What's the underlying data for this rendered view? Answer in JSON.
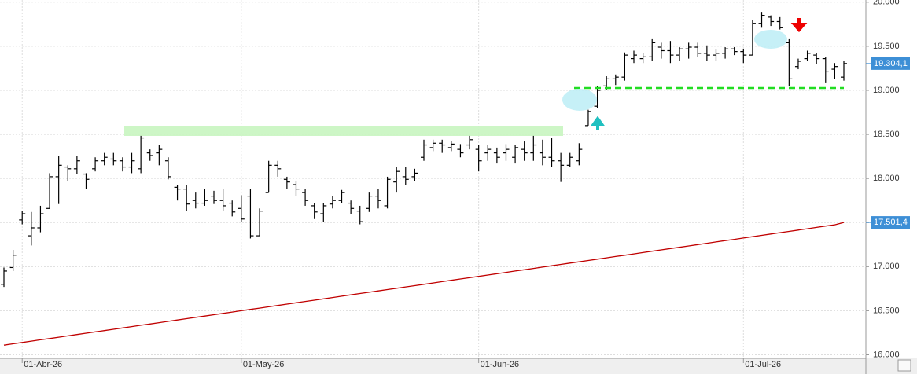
{
  "chart_data": {
    "type": "ohlc",
    "categories": [
      null,
      null,
      "01-Abr-26",
      null,
      null,
      null,
      null,
      null,
      null,
      null,
      null,
      null,
      null,
      null,
      null,
      null,
      null,
      null,
      null,
      null,
      null,
      null,
      null,
      null,
      null,
      null,
      "01-May-26",
      null,
      null,
      null,
      null,
      null,
      null,
      null,
      null,
      null,
      null,
      null,
      null,
      null,
      null,
      null,
      null,
      null,
      null,
      null,
      null,
      null,
      null,
      null,
      null,
      null,
      "01-Jun-26",
      null,
      null,
      null,
      null,
      null,
      null,
      null,
      null,
      null,
      null,
      null,
      null,
      null,
      null,
      null,
      null,
      null,
      null,
      null,
      null,
      null,
      null,
      null,
      null,
      null,
      null,
      null,
      null,
      "01-Jul-26",
      null,
      null,
      null,
      null,
      null,
      null,
      null,
      null,
      null,
      null,
      null
    ],
    "open": [
      16800,
      16990,
      17530,
      17350,
      17440,
      17660,
      18020,
      18130,
      18110,
      18050,
      18110,
      18200,
      18220,
      18200,
      18130,
      18110,
      18290,
      18290,
      18200,
      17900,
      17880,
      17750,
      17720,
      17800,
      17750,
      17720,
      17660,
      17800,
      17350,
      17840,
      18150,
      17990,
      17930,
      17840,
      17690,
      17600,
      17710,
      17750,
      17720,
      17630,
      17660,
      17800,
      17690,
      17960,
      18020,
      18020,
      18240,
      18350,
      18400,
      18350,
      18330,
      18380,
      18330,
      18290,
      18290,
      18290,
      18240,
      18330,
      18290,
      18290,
      18240,
      18200,
      18150,
      18200,
      18600,
      18820,
      19050,
      19130,
      19150,
      19360,
      19360,
      19380,
      19490,
      19450,
      19400,
      19470,
      19490,
      19420,
      19400,
      19420,
      19470,
      19440,
      19400,
      19760,
      19830,
      19780,
      19540,
      19270,
      19360,
      19400,
      19360,
      19240,
      19150
    ],
    "high": [
      16990,
      17190,
      17630,
      17620,
      17690,
      18060,
      18260,
      18150,
      18260,
      18060,
      18240,
      18290,
      18290,
      18240,
      18290,
      18490,
      18330,
      18380,
      18240,
      17930,
      17930,
      17840,
      17880,
      17860,
      17880,
      17750,
      17810,
      17880,
      17660,
      18200,
      18200,
      18020,
      17970,
      17880,
      17720,
      17720,
      17800,
      17870,
      17750,
      17690,
      17840,
      17880,
      18020,
      18130,
      18130,
      18110,
      18440,
      18440,
      18440,
      18420,
      18390,
      18490,
      18380,
      18380,
      18350,
      18390,
      18380,
      18420,
      18490,
      18440,
      18460,
      18290,
      18290,
      18400,
      18780,
      19050,
      19160,
      19180,
      19430,
      19450,
      19420,
      19580,
      19540,
      19560,
      19490,
      19540,
      19540,
      19510,
      19470,
      19490,
      19490,
      19470,
      19800,
      19890,
      19850,
      19830,
      19580,
      19360,
      19450,
      19420,
      19380,
      19310,
      19330
    ],
    "low": [
      16770,
      16950,
      17480,
      17240,
      17390,
      17660,
      17710,
      17970,
      18050,
      17880,
      18080,
      18150,
      18150,
      18080,
      18060,
      18060,
      18200,
      18150,
      17990,
      17750,
      17630,
      17660,
      17690,
      17710,
      17630,
      17570,
      17510,
      17320,
      17350,
      17840,
      18020,
      17880,
      17800,
      17690,
      17540,
      17510,
      17660,
      17720,
      17600,
      17480,
      17620,
      17660,
      17660,
      17840,
      17930,
      17970,
      18200,
      18310,
      18290,
      18310,
      18240,
      18330,
      18080,
      18200,
      18170,
      18200,
      18170,
      18200,
      18200,
      18150,
      18130,
      17960,
      18130,
      18150,
      18600,
      18800,
      19000,
      19060,
      19110,
      19310,
      19310,
      19330,
      19360,
      19310,
      19330,
      19360,
      19380,
      19330,
      19330,
      19360,
      19400,
      19310,
      19400,
      19710,
      19730,
      19690,
      19050,
      19240,
      19330,
      19300,
      19090,
      19130,
      19110
    ],
    "close": [
      16950,
      17130,
      17600,
      17440,
      17600,
      18020,
      18150,
      18110,
      18200,
      17990,
      18200,
      18240,
      18200,
      18130,
      18200,
      18460,
      18260,
      18330,
      18020,
      17880,
      17710,
      17720,
      17750,
      17750,
      17690,
      17620,
      17540,
      17350,
      17630,
      18150,
      18110,
      17960,
      17880,
      17750,
      17620,
      17690,
      17750,
      17840,
      17660,
      17510,
      17800,
      17750,
      17990,
      18080,
      17990,
      18060,
      18380,
      18400,
      18380,
      18390,
      18290,
      18440,
      18200,
      18330,
      18240,
      18330,
      18350,
      18290,
      18380,
      18240,
      18200,
      18150,
      18240,
      18330,
      18760,
      19000,
      19130,
      19150,
      19400,
      19400,
      19380,
      19540,
      19450,
      19400,
      19470,
      19490,
      19420,
      19400,
      19420,
      19470,
      19440,
      19400,
      19760,
      19850,
      19780,
      19710,
      19130,
      19330,
      19420,
      19360,
      19210,
      19270,
      19304.1
    ],
    "bar_color": "#000000",
    "ma": {
      "color": "#c00000",
      "values": [
        16110,
        16125,
        16140,
        16155,
        16170,
        16185,
        16200,
        16215,
        16230,
        16245,
        16260,
        16275,
        16290,
        16305,
        16320,
        16335,
        16350,
        16365,
        16380,
        16395,
        16410,
        16425,
        16440,
        16455,
        16470,
        16485,
        16500,
        16515,
        16530,
        16545,
        16560,
        16575,
        16590,
        16605,
        16620,
        16635,
        16650,
        16665,
        16680,
        16695,
        16710,
        16725,
        16740,
        16755,
        16770,
        16785,
        16800,
        16815,
        16830,
        16845,
        16860,
        16875,
        16890,
        16905,
        16920,
        16935,
        16950,
        16965,
        16980,
        16995,
        17010,
        17025,
        17040,
        17055,
        17070,
        17085,
        17100,
        17115,
        17130,
        17145,
        17160,
        17175,
        17190,
        17205,
        17220,
        17235,
        17250,
        17265,
        17280,
        17295,
        17310,
        17325,
        17340,
        17355,
        17370,
        17385,
        17400,
        17415,
        17430,
        17445,
        17460,
        17475,
        17501.4
      ]
    },
    "price_labels": [
      {
        "value": 19304.1,
        "label": "19.304,1"
      },
      {
        "value": 17501.4,
        "label": "17.501,4"
      }
    ],
    "ylim": [
      15960,
      20025
    ],
    "yticks": [
      {
        "value": 16000,
        "label": "16.000"
      },
      {
        "value": 16500,
        "label": "16.500"
      },
      {
        "value": 17000,
        "label": "17.000"
      },
      {
        "value": 17500,
        "label": "17.500"
      },
      {
        "value": 18000,
        "label": "18.000"
      },
      {
        "value": 18500,
        "label": "18.500"
      },
      {
        "value": 19000,
        "label": "19.000"
      },
      {
        "value": 19500,
        "label": "19.500"
      },
      {
        "value": 20000,
        "label": "20.000"
      }
    ],
    "grid": true
  }
}
